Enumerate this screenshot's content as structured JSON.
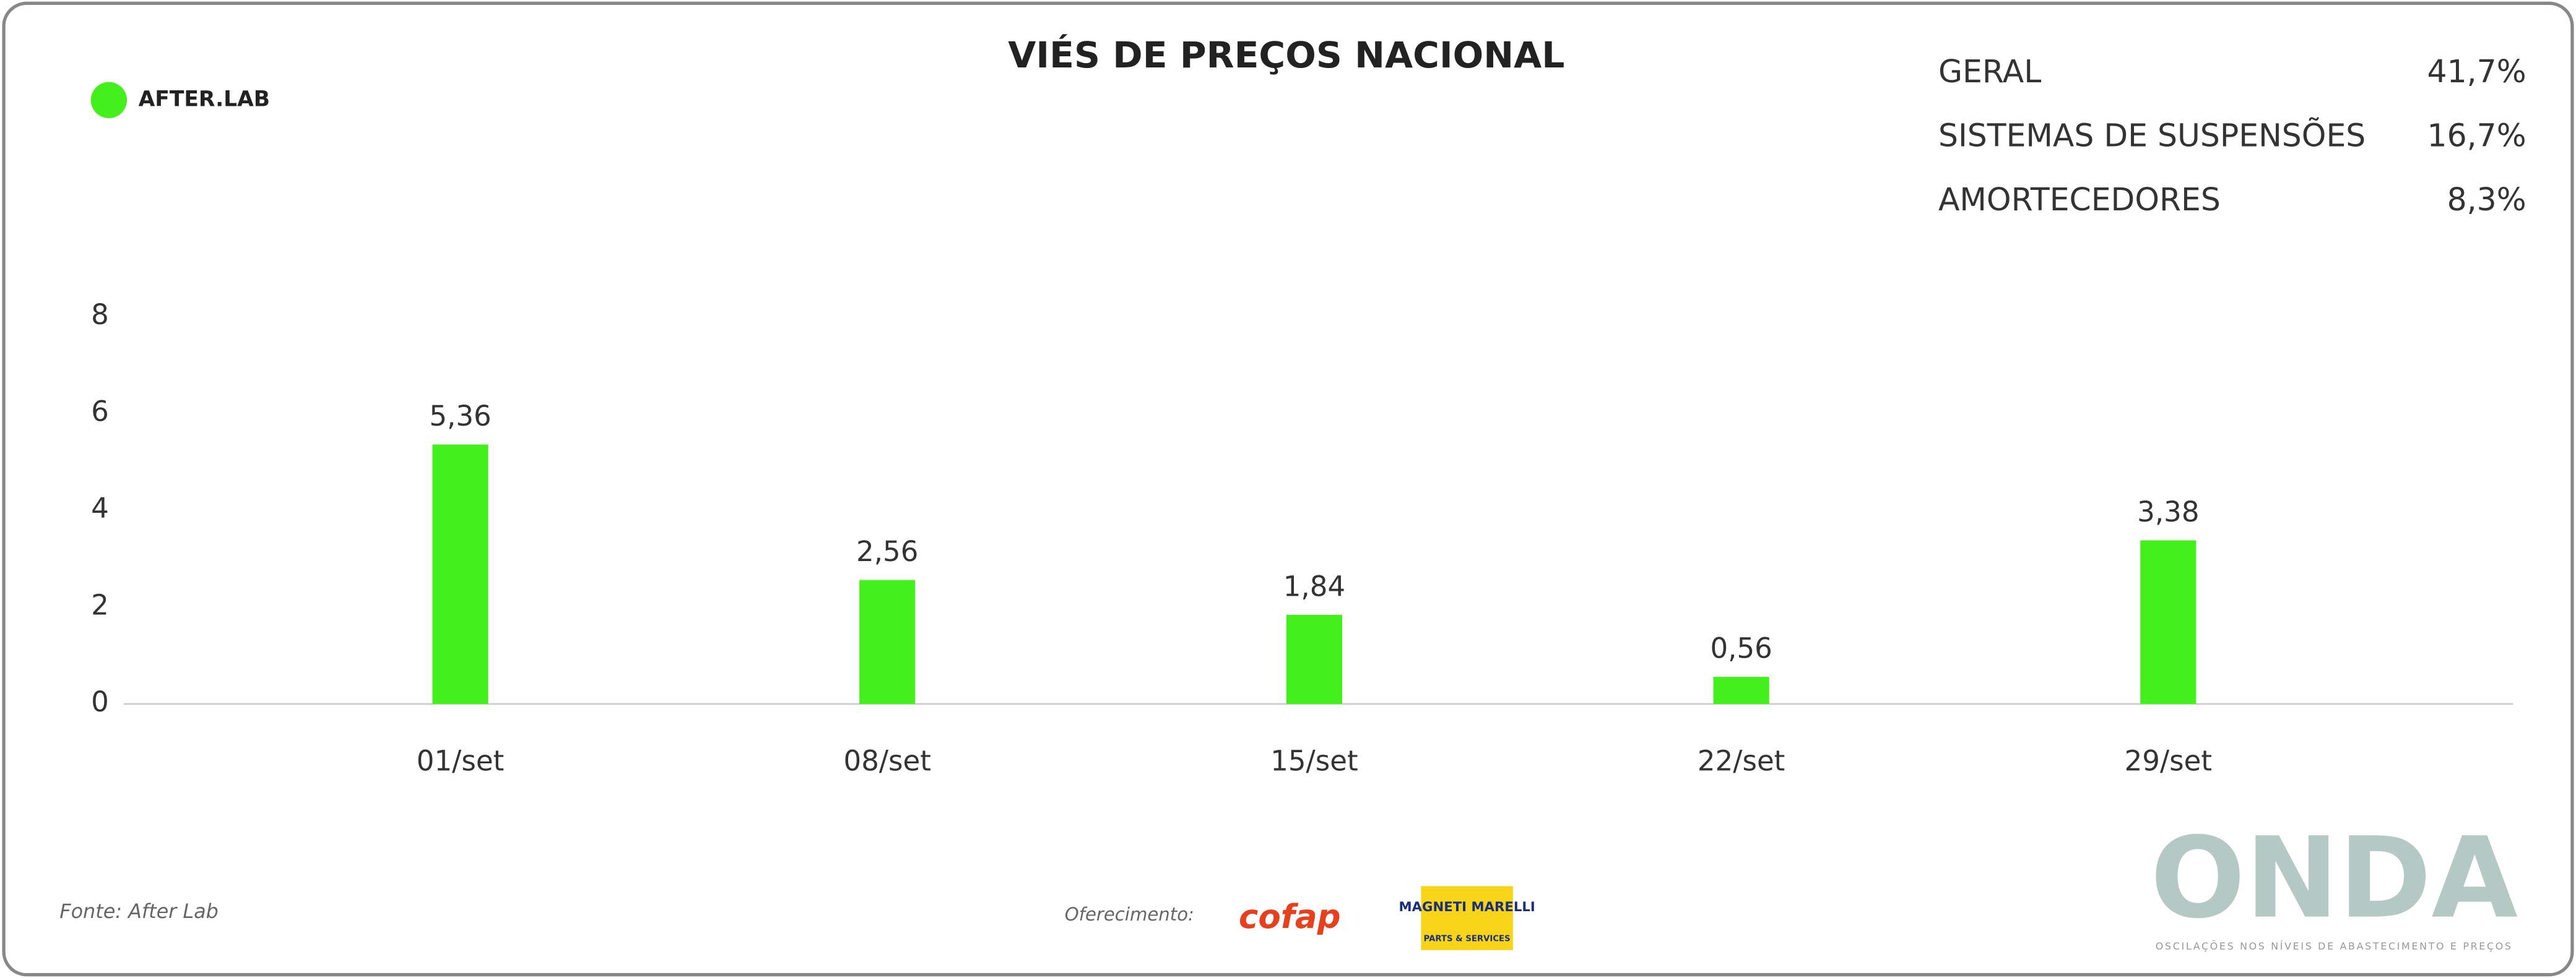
{
  "chart_data": {
    "type": "bar",
    "title": "VIÉS DE PREÇOS NACIONAL",
    "categories": [
      "01/set",
      "08/set",
      "15/set",
      "22/set",
      "29/set"
    ],
    "values": [
      5.36,
      2.56,
      1.84,
      0.56,
      3.38
    ],
    "value_labels": [
      "5,36",
      "2,56",
      "1,84",
      "0,56",
      "3,38"
    ],
    "color": "#44f01c",
    "ylim": [
      0,
      8
    ],
    "yticks": [
      0,
      2,
      4,
      6,
      8
    ],
    "grid": false,
    "summary": [
      {
        "label": "GERAL",
        "value": "41,7%"
      },
      {
        "label": "SISTEMAS DE SUSPENSÕES",
        "value": "16,7%"
      },
      {
        "label": "AMORTECEDORES",
        "value": "8,3%"
      }
    ]
  },
  "brand": {
    "logo": "AFTER.LAB",
    "source": "Fonte: After Lab",
    "sponsor_label": "Oferecimento:",
    "sponsors": [
      "cofap",
      "MAGNETI MARELLI",
      "PARTS & SERVICES"
    ],
    "footer_logo": "ONDA",
    "footer_tagline": "OSCILAÇÕES NOS NÍVEIS DE ABASTECIMENTO E PREÇOS"
  }
}
